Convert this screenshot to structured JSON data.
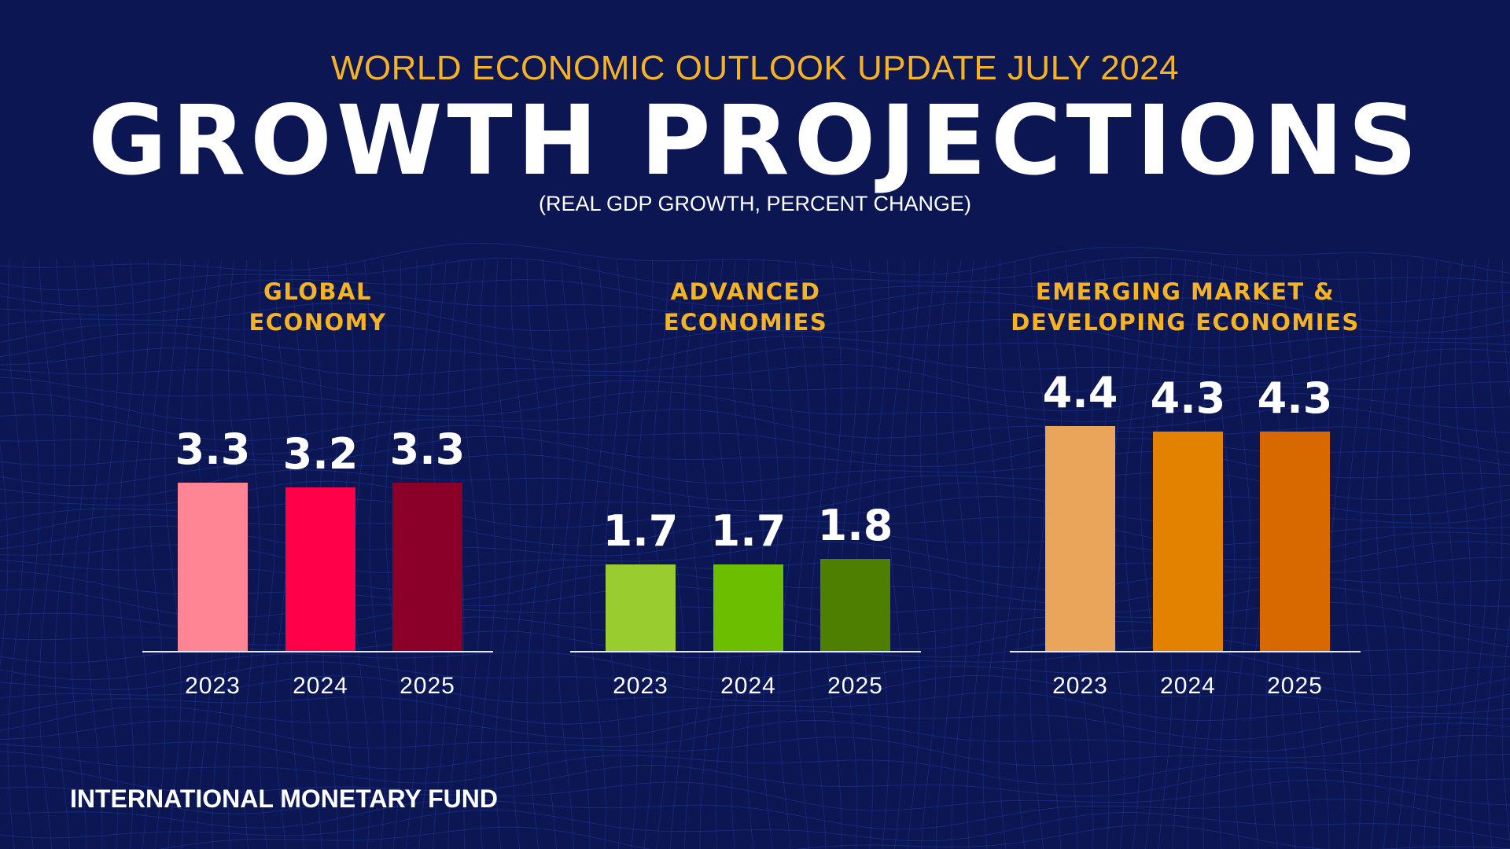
{
  "header": {
    "kicker": "WORLD ECONOMIC OUTLOOK UPDATE JULY 2024",
    "title": "GROWTH PROJECTIONS",
    "subtitle": "(REAL GDP GROWTH, PERCENT CHANGE)"
  },
  "footer": {
    "org": "INTERNATIONAL MONETARY FUND"
  },
  "colors": {
    "background": "#0b1652",
    "heading": "#f5b324"
  },
  "chart_data": [
    {
      "type": "bar",
      "title_lines": [
        "GLOBAL",
        "ECONOMY"
      ],
      "categories": [
        "2023",
        "2024",
        "2025"
      ],
      "values": [
        3.3,
        3.2,
        3.3
      ],
      "labels": [
        "3.3",
        "3.2",
        "3.3"
      ],
      "colors": [
        "#ff8595",
        "#ff0049",
        "#8b0029"
      ],
      "ylim": [
        0,
        5
      ],
      "grid": false
    },
    {
      "type": "bar",
      "title_lines": [
        "ADVANCED",
        "ECONOMIES"
      ],
      "categories": [
        "2023",
        "2024",
        "2025"
      ],
      "values": [
        1.7,
        1.7,
        1.8
      ],
      "labels": [
        "1.7",
        "1.7",
        "1.8"
      ],
      "colors": [
        "#99cc2e",
        "#6bbf00",
        "#4f7f00"
      ],
      "ylim": [
        0,
        5
      ],
      "grid": false
    },
    {
      "type": "bar",
      "title_lines": [
        "EMERGING MARKET &",
        "DEVELOPING ECONOMIES"
      ],
      "categories": [
        "2023",
        "2024",
        "2025"
      ],
      "values": [
        4.4,
        4.3,
        4.3
      ],
      "labels": [
        "4.4",
        "4.3",
        "4.3"
      ],
      "colors": [
        "#eba55a",
        "#e38200",
        "#d76900"
      ],
      "ylim": [
        0,
        5
      ],
      "grid": false
    }
  ]
}
